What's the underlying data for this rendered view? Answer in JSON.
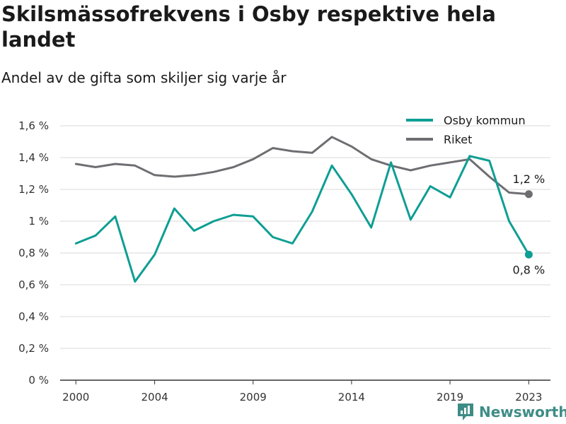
{
  "title": "Skilsmässofrekvens i Osby respektive hela landet",
  "subtitle": "Andel av de gifta som skiljer sig varje år",
  "brand": "Newsworthy",
  "chart_data": {
    "type": "line",
    "x": [
      2000,
      2001,
      2002,
      2003,
      2004,
      2005,
      2006,
      2007,
      2008,
      2009,
      2010,
      2011,
      2012,
      2013,
      2014,
      2015,
      2016,
      2017,
      2018,
      2019,
      2020,
      2021,
      2022,
      2023
    ],
    "xticks": [
      2000,
      2004,
      2009,
      2014,
      2019,
      2023
    ],
    "xlim": [
      1999.2,
      2024.1
    ],
    "ylim": [
      0,
      1.6
    ],
    "yticks": [
      0,
      0.2,
      0.4,
      0.6,
      0.8,
      1.0,
      1.2,
      1.4,
      1.6
    ],
    "ytick_labels": [
      "0 %",
      "0,2 %",
      "0,4 %",
      "0,6 %",
      "0,8 %",
      "1 %",
      "1,2 %",
      "1,4 %",
      "1,6 %"
    ],
    "grid": true,
    "legend_position": "top-right",
    "series": [
      {
        "name": "Osby kommun",
        "color": "#0e9e94",
        "values": [
          0.86,
          0.91,
          1.03,
          0.62,
          0.79,
          1.08,
          0.94,
          1.0,
          1.04,
          1.03,
          0.9,
          0.86,
          1.06,
          1.35,
          1.17,
          0.96,
          1.37,
          1.01,
          1.22,
          1.15,
          1.41,
          1.38,
          1.0,
          0.79
        ],
        "end_label": "0,8 %"
      },
      {
        "name": "Riket",
        "color": "#6e6e72",
        "values": [
          1.36,
          1.34,
          1.36,
          1.35,
          1.29,
          1.28,
          1.29,
          1.31,
          1.34,
          1.39,
          1.46,
          1.44,
          1.43,
          1.53,
          1.47,
          1.39,
          1.35,
          1.32,
          1.35,
          1.37,
          1.39,
          1.28,
          1.18,
          1.17
        ],
        "end_label": "1,2 %"
      }
    ]
  }
}
